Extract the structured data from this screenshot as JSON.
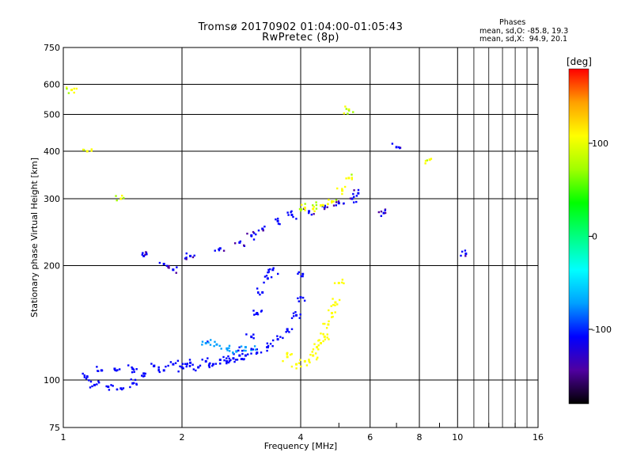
{
  "title_line1": "Tromsø 20170902 01:04:00-01:05:43",
  "title_line2": "RwPretec (8p)",
  "stats": {
    "header": "Phases",
    "o_label": "mean, sd,O:",
    "o_values": "-85.8, 19.3",
    "x_label": "mean, sd,X:",
    "x_values": " 94.9, 20.1"
  },
  "colorbar": {
    "unit_label": "[deg]",
    "ticks": [
      "100",
      "0",
      "-100"
    ],
    "tick_values": [
      100,
      0,
      -100
    ],
    "range": [
      -180,
      180
    ],
    "colors": [
      "#000000",
      "#5000a0",
      "#0000ff",
      "#00a0ff",
      "#00ffff",
      "#00ff80",
      "#00ff00",
      "#a0ff00",
      "#ffff00",
      "#ffa000",
      "#ff0000"
    ]
  },
  "chart_data": {
    "type": "scatter",
    "title": "Tromsø 20170902 01:04:00-01:05:43",
    "subtitle": "RwPretec (8p)",
    "xlabel": "Frequency [MHz]",
    "ylabel": "Stationary phase Virtual Height [km]",
    "xscale": "log",
    "yscale": "log",
    "xlim": [
      1,
      16
    ],
    "ylim": [
      75,
      750
    ],
    "xticks": [
      1,
      2,
      4,
      6,
      8,
      10,
      16
    ],
    "xtick_labels": [
      "1",
      "2",
      "4",
      "6",
      "8",
      "10",
      "16"
    ],
    "yticks": [
      75,
      100,
      200,
      300,
      400,
      500,
      600,
      750
    ],
    "ytick_labels": [
      "75",
      "100",
      "200",
      "300",
      "400",
      "500",
      "600",
      "750"
    ],
    "grid": true,
    "color_variable": "phase [deg]",
    "clusters": [
      {
        "polarisation": "O",
        "phase": -105,
        "points": [
          [
            1.15,
            102
          ],
          [
            1.25,
            106
          ],
          [
            1.35,
            107
          ],
          [
            1.5,
            107
          ],
          [
            1.7,
            109
          ],
          [
            1.9,
            110
          ],
          [
            2.1,
            111
          ],
          [
            2.3,
            112
          ],
          [
            2.5,
            113
          ],
          [
            2.7,
            114
          ],
          [
            2.9,
            116
          ],
          [
            3.1,
            118
          ],
          [
            3.3,
            122
          ],
          [
            3.5,
            128
          ],
          [
            3.7,
            136
          ],
          [
            3.9,
            148
          ],
          [
            4.0,
            165
          ],
          [
            4.05,
            190
          ]
        ]
      },
      {
        "polarisation": "O",
        "phase": -110,
        "points": [
          [
            1.2,
            97
          ],
          [
            1.3,
            96
          ],
          [
            1.4,
            95
          ],
          [
            1.5,
            98
          ],
          [
            1.6,
            104
          ],
          [
            1.8,
            106
          ],
          [
            2.0,
            108
          ],
          [
            2.2,
            108
          ],
          [
            2.4,
            110
          ],
          [
            2.6,
            112
          ],
          [
            2.8,
            116
          ],
          [
            3.0,
            130
          ],
          [
            3.1,
            150
          ],
          [
            3.2,
            170
          ],
          [
            3.3,
            185
          ],
          [
            3.4,
            195
          ]
        ]
      },
      {
        "polarisation": "O",
        "phase": -80,
        "points": [
          [
            2.3,
            125
          ],
          [
            2.45,
            124
          ],
          [
            2.6,
            121
          ],
          [
            2.75,
            119
          ],
          [
            2.9,
            122
          ],
          [
            3.0,
            120
          ]
        ]
      },
      {
        "polarisation": "O",
        "phase": -120,
        "points": [
          [
            1.6,
            212
          ],
          [
            1.8,
            202
          ],
          [
            1.9,
            195
          ],
          [
            2.1,
            212
          ],
          [
            2.5,
            222
          ],
          [
            2.8,
            230
          ],
          [
            3.0,
            240
          ],
          [
            3.2,
            250
          ],
          [
            3.5,
            262
          ],
          [
            3.8,
            272
          ],
          [
            4.2,
            278
          ],
          [
            4.6,
            285
          ],
          [
            5.0,
            292
          ],
          [
            5.4,
            300
          ],
          [
            5.6,
            310
          ],
          [
            6.5,
            275
          ],
          [
            7.0,
            410
          ],
          [
            10.5,
            215
          ]
        ]
      },
      {
        "polarisation": "X",
        "phase": 110,
        "points": [
          [
            3.7,
            115
          ],
          [
            3.9,
            110
          ],
          [
            4.1,
            112
          ],
          [
            4.3,
            116
          ],
          [
            4.5,
            125
          ],
          [
            4.7,
            140
          ],
          [
            4.9,
            160
          ],
          [
            5.0,
            180
          ],
          [
            4.4,
            122
          ],
          [
            4.6,
            130
          ],
          [
            4.8,
            150
          ]
        ]
      },
      {
        "polarisation": "X",
        "phase": 95,
        "points": [
          [
            4.1,
            284
          ],
          [
            4.3,
            282
          ],
          [
            4.5,
            288
          ],
          [
            4.8,
            295
          ],
          [
            5.1,
            315
          ],
          [
            5.3,
            340
          ],
          [
            1.05,
            580
          ],
          [
            1.15,
            400
          ],
          [
            1.4,
            300
          ],
          [
            5.3,
            515
          ],
          [
            8.5,
            380
          ]
        ]
      }
    ]
  }
}
